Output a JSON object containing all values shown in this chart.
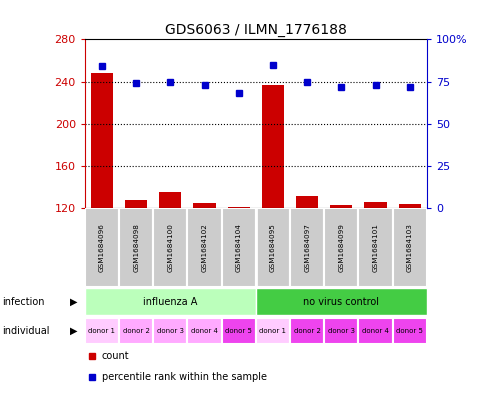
{
  "title": "GDS6063 / ILMN_1776188",
  "samples": [
    "GSM1684096",
    "GSM1684098",
    "GSM1684100",
    "GSM1684102",
    "GSM1684104",
    "GSM1684095",
    "GSM1684097",
    "GSM1684099",
    "GSM1684101",
    "GSM1684103"
  ],
  "counts": [
    248,
    128,
    135,
    125,
    121,
    237,
    132,
    123,
    126,
    124
  ],
  "percentiles": [
    84,
    74,
    75,
    73,
    68,
    85,
    75,
    72,
    73,
    72
  ],
  "ylim_left": [
    120,
    280
  ],
  "ylim_right": [
    0,
    100
  ],
  "yticks_left": [
    120,
    160,
    200,
    240,
    280
  ],
  "yticks_right": [
    0,
    25,
    50,
    75,
    100
  ],
  "dotted_lines": [
    160,
    200,
    240
  ],
  "infection_labels": [
    "influenza A",
    "no virus control"
  ],
  "infection_colors": [
    "#bbffbb",
    "#44cc44"
  ],
  "individual_labels": [
    "donor 1",
    "donor 2",
    "donor 3",
    "donor 4",
    "donor 5",
    "donor 1",
    "donor 2",
    "donor 3",
    "donor 4",
    "donor 5"
  ],
  "individual_colors": [
    "#ffccff",
    "#ffaaff",
    "#ffaaff",
    "#ffaaff",
    "#ee44ee",
    "#ffccff",
    "#ee44ee",
    "#ee44ee",
    "#ee44ee",
    "#ee44ee"
  ],
  "bar_color": "#cc0000",
  "dot_color": "#0000cc",
  "sample_bg": "#cccccc",
  "left_tick_color": "#cc0000",
  "right_tick_color": "#0000cc",
  "border_color": "#000000"
}
